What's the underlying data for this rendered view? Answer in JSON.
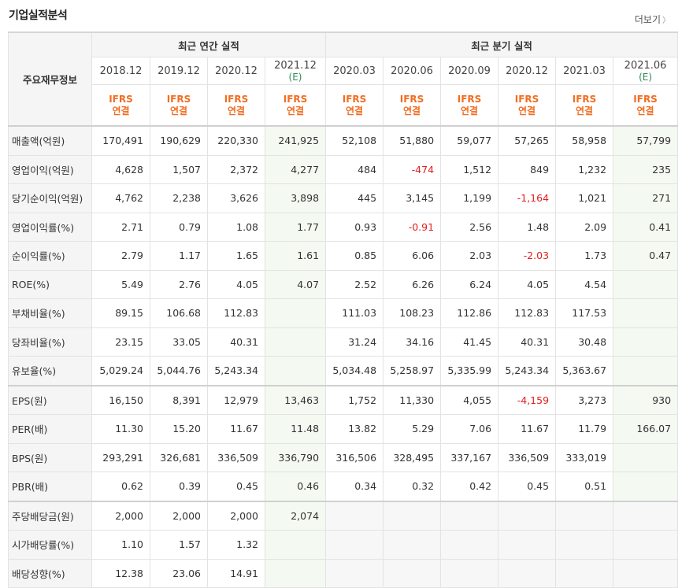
{
  "title": "기업실적분석",
  "more_label": "더보기",
  "table": {
    "corner_label": "주요재무정보",
    "group_annual": "최근 연간 실적",
    "group_quarter": "최근 분기 실적",
    "periods": [
      {
        "label": "2018.12",
        "est": ""
      },
      {
        "label": "2019.12",
        "est": ""
      },
      {
        "label": "2020.12",
        "est": ""
      },
      {
        "label": "2021.12",
        "est": "(E)"
      },
      {
        "label": "2020.03",
        "est": ""
      },
      {
        "label": "2020.06",
        "est": ""
      },
      {
        "label": "2020.09",
        "est": ""
      },
      {
        "label": "2020.12",
        "est": ""
      },
      {
        "label": "2021.03",
        "est": ""
      },
      {
        "label": "2021.06",
        "est": "(E)"
      }
    ],
    "basis_line1": "IFRS",
    "basis_line2": "연결",
    "rows": [
      {
        "label": "매출액(억원)",
        "values": [
          "170,491",
          "190,629",
          "220,330",
          "241,925",
          "52,108",
          "51,880",
          "59,077",
          "57,265",
          "58,958",
          "57,799"
        ]
      },
      {
        "label": "영업이익(억원)",
        "values": [
          "4,628",
          "1,507",
          "2,372",
          "4,277",
          "484",
          "-474",
          "1,512",
          "849",
          "1,232",
          "235"
        ]
      },
      {
        "label": "당기순이익(억원)",
        "values": [
          "4,762",
          "2,238",
          "3,626",
          "3,898",
          "445",
          "3,145",
          "1,199",
          "-1,164",
          "1,021",
          "271"
        ]
      },
      {
        "label": "영업이익률(%)",
        "values": [
          "2.71",
          "0.79",
          "1.08",
          "1.77",
          "0.93",
          "-0.91",
          "2.56",
          "1.48",
          "2.09",
          "0.41"
        ]
      },
      {
        "label": "순이익률(%)",
        "values": [
          "2.79",
          "1.17",
          "1.65",
          "1.61",
          "0.85",
          "6.06",
          "2.03",
          "-2.03",
          "1.73",
          "0.47"
        ]
      },
      {
        "label": "ROE(%)",
        "values": [
          "5.49",
          "2.76",
          "4.05",
          "4.07",
          "2.52",
          "6.26",
          "6.24",
          "4.05",
          "4.54",
          ""
        ]
      },
      {
        "label": "부채비율(%)",
        "values": [
          "89.15",
          "106.68",
          "112.83",
          "",
          "111.03",
          "108.23",
          "112.86",
          "112.83",
          "117.53",
          ""
        ]
      },
      {
        "label": "당좌비율(%)",
        "values": [
          "23.15",
          "33.05",
          "40.31",
          "",
          "31.24",
          "34.16",
          "41.45",
          "40.31",
          "30.48",
          ""
        ]
      },
      {
        "label": "유보율(%)",
        "values": [
          "5,029.24",
          "5,044.76",
          "5,243.34",
          "",
          "5,034.48",
          "5,258.97",
          "5,335.99",
          "5,243.34",
          "5,363.67",
          ""
        ]
      },
      {
        "label": "EPS(원)",
        "values": [
          "16,150",
          "8,391",
          "12,979",
          "13,463",
          "1,752",
          "11,330",
          "4,055",
          "-4,159",
          "3,273",
          "930"
        ]
      },
      {
        "label": "PER(배)",
        "values": [
          "11.30",
          "15.20",
          "11.67",
          "11.48",
          "13.82",
          "5.29",
          "7.06",
          "11.67",
          "11.79",
          "166.07"
        ]
      },
      {
        "label": "BPS(원)",
        "values": [
          "293,291",
          "326,681",
          "336,509",
          "336,790",
          "316,506",
          "328,495",
          "337,167",
          "336,509",
          "333,019",
          ""
        ]
      },
      {
        "label": "PBR(배)",
        "values": [
          "0.62",
          "0.39",
          "0.45",
          "0.46",
          "0.34",
          "0.32",
          "0.42",
          "0.45",
          "0.51",
          ""
        ]
      },
      {
        "label": "주당배당금(원)",
        "values": [
          "2,000",
          "2,000",
          "2,000",
          "2,074",
          "",
          "",
          "",
          "",
          "",
          ""
        ]
      },
      {
        "label": "시가배당률(%)",
        "values": [
          "1.10",
          "1.57",
          "1.32",
          "",
          "",
          "",
          "",
          "",
          "",
          ""
        ]
      },
      {
        "label": "배당성향(%)",
        "values": [
          "12.38",
          "23.06",
          "14.91",
          "",
          "",
          "",
          "",
          "",
          "",
          ""
        ]
      }
    ],
    "colors": {
      "negative": "#e02020",
      "basis": "#f26d21",
      "estimate": "#2e8b57"
    }
  }
}
